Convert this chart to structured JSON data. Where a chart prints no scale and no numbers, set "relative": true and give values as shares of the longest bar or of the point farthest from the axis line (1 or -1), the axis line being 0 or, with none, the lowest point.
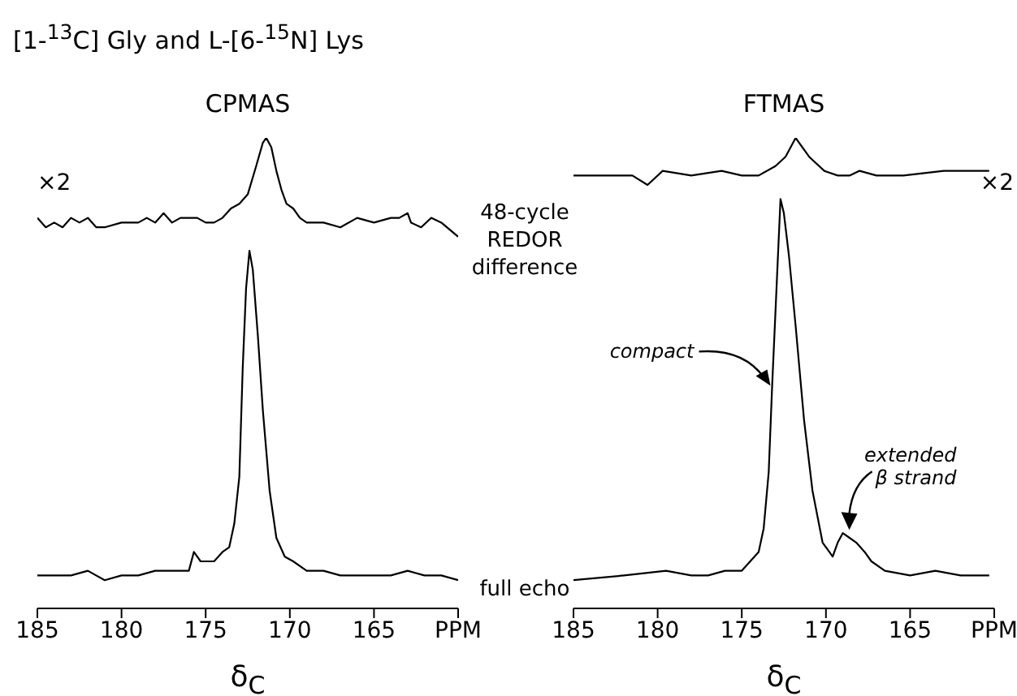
{
  "chart_data": [
    {
      "type": "line",
      "title": "[1-$^{13}$C] Gly and L-[6-$^{15}$N] Lys",
      "subtitle": "CPMAS",
      "xlabel": "δ$_{C}$",
      "relative": true,
      "xlim": [
        185,
        160
      ],
      "xticks": [
        185,
        180,
        175,
        170,
        165,
        {
          "value": 160,
          "label": "PPM"
        }
      ],
      "annotations": [
        "×2"
      ],
      "series": [
        {
          "name": "48-cycle REDOR difference",
          "color": "#000000",
          "x": [
            185,
            184.5,
            184,
            183.5,
            183,
            182.5,
            182,
            181.5,
            181,
            180,
            179,
            178.5,
            178,
            177.5,
            177,
            176.5,
            176,
            175.5,
            175,
            174.5,
            174,
            173.5,
            173,
            172.5,
            172,
            171.6,
            171.4,
            171.1,
            170.8,
            170.5,
            170.2,
            169.8,
            169.4,
            169,
            168,
            167,
            166,
            165,
            164,
            163.5,
            163,
            162.8,
            162.2,
            161.6,
            161,
            160
          ],
          "values": [
            0.83,
            0.81,
            0.82,
            0.81,
            0.83,
            0.82,
            0.83,
            0.81,
            0.81,
            0.82,
            0.82,
            0.83,
            0.82,
            0.84,
            0.82,
            0.83,
            0.83,
            0.83,
            0.82,
            0.82,
            0.83,
            0.85,
            0.86,
            0.88,
            0.94,
            0.99,
            1,
            0.98,
            0.93,
            0.89,
            0.86,
            0.85,
            0.83,
            0.82,
            0.82,
            0.81,
            0.83,
            0.82,
            0.83,
            0.83,
            0.84,
            0.82,
            0.81,
            0.83,
            0.82,
            0.79
          ]
        },
        {
          "name": "full echo",
          "color": "#000000",
          "x": [
            185,
            184,
            183,
            182,
            181,
            180,
            179,
            178,
            177,
            176,
            175.7,
            175.3,
            174.5,
            174,
            173.6,
            173.3,
            173,
            172.8,
            172.6,
            172.4,
            172.2,
            171.9,
            171.6,
            171.2,
            170.8,
            170.3,
            169.8,
            169,
            168,
            167,
            166,
            165,
            164,
            163,
            162,
            161,
            160
          ],
          "values": [
            0.07,
            0.07,
            0.07,
            0.08,
            0.06,
            0.07,
            0.07,
            0.08,
            0.08,
            0.08,
            0.12,
            0.1,
            0.1,
            0.12,
            0.13,
            0.18,
            0.28,
            0.51,
            0.68,
            0.76,
            0.72,
            0.58,
            0.42,
            0.25,
            0.15,
            0.11,
            0.1,
            0.08,
            0.08,
            0.07,
            0.07,
            0.07,
            0.07,
            0.08,
            0.07,
            0.07,
            0.06
          ]
        }
      ]
    },
    {
      "type": "line",
      "subtitle": "FTMAS",
      "xlabel": "δ$_{C}$",
      "relative": true,
      "xlim": [
        185,
        160
      ],
      "xticks": [
        185,
        180,
        175,
        170,
        165,
        {
          "value": 160,
          "label": "PPM"
        }
      ],
      "annotations": [
        "×2",
        {
          "text": "compact",
          "x": 173.2,
          "y": 0.47
        },
        {
          "text": "extended β strand",
          "x": 169,
          "y": 0.16
        }
      ],
      "series": [
        {
          "color": "#000000",
          "x": [
            185,
            183,
            181.5,
            180.6,
            179.7,
            178,
            176.2,
            175,
            174,
            173,
            172.4,
            171.8,
            171,
            170.1,
            169.3,
            168.6,
            168,
            167,
            165.4,
            163,
            160.3
          ],
          "values": [
            0.92,
            0.92,
            0.92,
            0.9,
            0.93,
            0.92,
            0.93,
            0.92,
            0.92,
            0.94,
            0.96,
            1,
            0.96,
            0.93,
            0.92,
            0.92,
            0.93,
            0.92,
            0.92,
            0.93,
            0.93
          ]
        },
        {
          "color": "#000000",
          "x": [
            185,
            182,
            179.5,
            178,
            177,
            176,
            175,
            174.5,
            174,
            173.7,
            173.4,
            173.2,
            172.9,
            172.7,
            172.5,
            172.2,
            171.8,
            171.3,
            170.8,
            170.2,
            169.6,
            169.3,
            169,
            168.6,
            168.2,
            167.7,
            167.3,
            166.5,
            165,
            163.5,
            162,
            160.3
          ],
          "values": [
            0.06,
            0.07,
            0.08,
            0.07,
            0.07,
            0.08,
            0.08,
            0.1,
            0.12,
            0.17,
            0.29,
            0.47,
            0.71,
            0.87,
            0.84,
            0.75,
            0.6,
            0.4,
            0.25,
            0.14,
            0.11,
            0.14,
            0.16,
            0.15,
            0.14,
            0.12,
            0.1,
            0.08,
            0.07,
            0.08,
            0.07,
            0.07
          ]
        }
      ]
    }
  ]
}
